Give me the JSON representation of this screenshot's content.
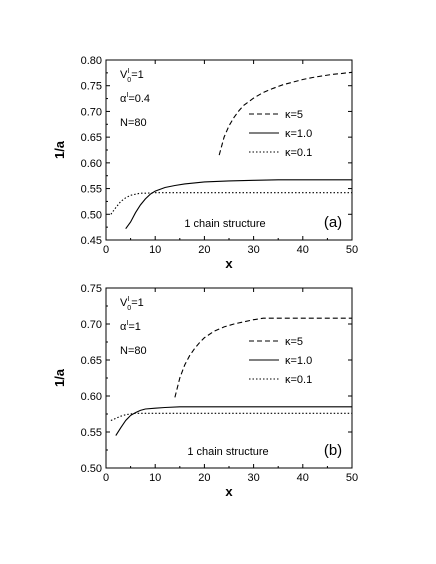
{
  "chart_data": [
    {
      "type": "line",
      "panel_label": "(a)",
      "annotation": "1 chain structure",
      "xlabel": "x",
      "ylabel": "1/a",
      "xlim": [
        0,
        50
      ],
      "ylim": [
        0.45,
        0.8
      ],
      "xticks": [
        "0",
        "10",
        "20",
        "30",
        "40",
        "50"
      ],
      "yticks": [
        "0.45",
        "0.50",
        "0.55",
        "0.60",
        "0.65",
        "0.70",
        "0.75",
        "0.80"
      ],
      "params": [
        {
          "sym": "V",
          "sub": "0",
          "sup": "I",
          "val": "=1"
        },
        {
          "sym": "α",
          "sub": "",
          "sup": "I",
          "val": "=0.4"
        },
        {
          "sym": "N",
          "sub": "",
          "sup": "",
          "val": "=80"
        }
      ],
      "series": [
        {
          "name": "κ=5",
          "style": "dashed",
          "x": [
            23,
            24,
            25,
            26,
            27,
            28,
            30,
            32,
            34,
            36,
            38,
            40,
            42,
            44,
            46,
            48,
            50
          ],
          "y": [
            0.615,
            0.65,
            0.672,
            0.688,
            0.701,
            0.712,
            0.726,
            0.737,
            0.745,
            0.752,
            0.757,
            0.762,
            0.766,
            0.769,
            0.772,
            0.774,
            0.776
          ]
        },
        {
          "name": "κ=1.0",
          "style": "solid",
          "x": [
            4,
            5,
            6,
            7,
            8,
            9,
            10,
            12,
            14,
            16,
            18,
            20,
            25,
            30,
            35,
            40,
            45,
            50
          ],
          "y": [
            0.472,
            0.485,
            0.503,
            0.518,
            0.53,
            0.539,
            0.545,
            0.552,
            0.556,
            0.559,
            0.561,
            0.563,
            0.565,
            0.566,
            0.567,
            0.567,
            0.567,
            0.567
          ]
        },
        {
          "name": "κ=0.1",
          "style": "dotted",
          "x": [
            1,
            2,
            3,
            4,
            5,
            6,
            7,
            8,
            10,
            15,
            20,
            30,
            40,
            50
          ],
          "y": [
            0.5,
            0.513,
            0.525,
            0.532,
            0.537,
            0.539,
            0.541,
            0.541,
            0.542,
            0.542,
            0.542,
            0.542,
            0.542,
            0.542
          ]
        }
      ]
    },
    {
      "type": "line",
      "panel_label": "(b)",
      "annotation": "1 chain structure",
      "xlabel": "x",
      "ylabel": "1/a",
      "xlim": [
        0,
        50
      ],
      "ylim": [
        0.5,
        0.75
      ],
      "xticks": [
        "0",
        "10",
        "20",
        "30",
        "40",
        "50"
      ],
      "yticks": [
        "0.50",
        "0.55",
        "0.60",
        "0.65",
        "0.70",
        "0.75"
      ],
      "params": [
        {
          "sym": "V",
          "sub": "0",
          "sup": "I",
          "val": "=1"
        },
        {
          "sym": "α",
          "sub": "",
          "sup": "I",
          "val": "=1"
        },
        {
          "sym": "N",
          "sub": "",
          "sup": "",
          "val": "=80"
        }
      ],
      "series": [
        {
          "name": "κ=5",
          "style": "dashed",
          "x": [
            14,
            15,
            16,
            17,
            18,
            19,
            20,
            22,
            24,
            26,
            28,
            30,
            32,
            35,
            40,
            45,
            50
          ],
          "y": [
            0.598,
            0.625,
            0.643,
            0.656,
            0.666,
            0.674,
            0.681,
            0.69,
            0.696,
            0.7,
            0.703,
            0.706,
            0.708,
            0.708,
            0.708,
            0.708,
            0.708
          ]
        },
        {
          "name": "κ=1.0",
          "style": "solid",
          "x": [
            2,
            3,
            4,
            5,
            6,
            7,
            8,
            10,
            12,
            15,
            20,
            30,
            40,
            50
          ],
          "y": [
            0.545,
            0.556,
            0.566,
            0.573,
            0.577,
            0.58,
            0.582,
            0.583,
            0.584,
            0.585,
            0.585,
            0.585,
            0.585,
            0.585
          ]
        },
        {
          "name": "κ=0.1",
          "style": "dotted",
          "x": [
            1,
            2,
            3,
            4,
            5,
            6,
            8,
            10,
            15,
            20,
            30,
            40,
            50
          ],
          "y": [
            0.566,
            0.569,
            0.572,
            0.574,
            0.575,
            0.576,
            0.576,
            0.576,
            0.576,
            0.576,
            0.576,
            0.576,
            0.576
          ]
        }
      ]
    }
  ]
}
